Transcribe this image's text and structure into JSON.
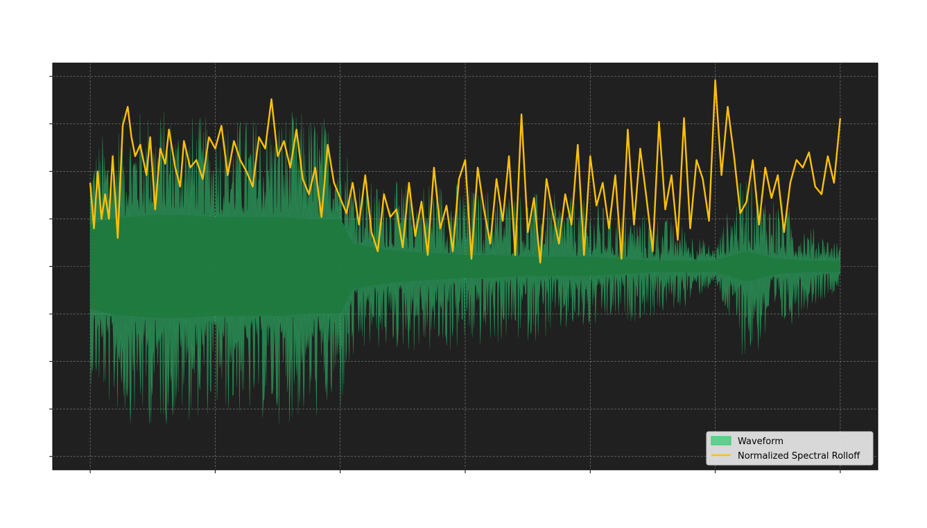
{
  "chart_data": {
    "type": "area",
    "title": "",
    "xlabel": "",
    "ylabel": "",
    "x_ticks_labeled": false,
    "y_ticks_labeled": false,
    "xlim": [
      -0.3,
      6.3
    ],
    "ylim": [
      -1.07,
      1.07
    ],
    "x_tick_positions": [
      0,
      1,
      2,
      3,
      4,
      5,
      6
    ],
    "y_tick_positions": [
      -1.0,
      -0.75,
      -0.5,
      -0.25,
      0.0,
      0.25,
      0.5,
      0.75,
      1.0
    ],
    "grid": true,
    "legend_position": "lower right",
    "background_color": "#202020",
    "series": [
      {
        "name": "Waveform",
        "kind": "filled envelope",
        "color": "#2ecc71",
        "x": [
          0.0,
          0.15,
          0.3,
          0.5,
          0.75,
          1.0,
          1.25,
          1.5,
          1.75,
          2.0,
          2.1,
          2.25,
          2.5,
          2.75,
          3.0,
          3.25,
          3.5,
          3.75,
          4.0,
          4.25,
          4.5,
          4.75,
          5.0,
          5.1,
          5.25,
          5.5,
          5.75,
          6.0
        ],
        "peak_amplitude": [
          0.62,
          0.75,
          0.82,
          0.85,
          0.82,
          0.78,
          0.8,
          0.83,
          0.82,
          0.8,
          0.55,
          0.45,
          0.45,
          0.48,
          0.45,
          0.42,
          0.4,
          0.38,
          0.35,
          0.3,
          0.28,
          0.22,
          0.1,
          0.3,
          0.52,
          0.38,
          0.22,
          0.12
        ],
        "dense_amplitude": [
          0.22,
          0.25,
          0.26,
          0.27,
          0.27,
          0.26,
          0.26,
          0.26,
          0.25,
          0.25,
          0.12,
          0.1,
          0.08,
          0.07,
          0.06,
          0.06,
          0.05,
          0.05,
          0.05,
          0.04,
          0.03,
          0.03,
          0.03,
          0.05,
          0.08,
          0.04,
          0.03,
          0.03
        ]
      },
      {
        "name": "Normalized Spectral Rolloff",
        "kind": "line",
        "color": "#ffc107",
        "x": [
          0.0,
          0.03,
          0.06,
          0.09,
          0.12,
          0.15,
          0.18,
          0.22,
          0.26,
          0.3,
          0.33,
          0.36,
          0.4,
          0.45,
          0.48,
          0.52,
          0.56,
          0.6,
          0.63,
          0.68,
          0.72,
          0.75,
          0.8,
          0.85,
          0.9,
          0.95,
          1.0,
          1.05,
          1.1,
          1.15,
          1.2,
          1.25,
          1.3,
          1.35,
          1.4,
          1.45,
          1.5,
          1.55,
          1.6,
          1.65,
          1.7,
          1.75,
          1.8,
          1.85,
          1.9,
          1.95,
          2.0,
          2.05,
          2.1,
          2.15,
          2.2,
          2.25,
          2.3,
          2.35,
          2.4,
          2.45,
          2.5,
          2.55,
          2.6,
          2.65,
          2.7,
          2.75,
          2.8,
          2.85,
          2.9,
          2.95,
          3.0,
          3.05,
          3.1,
          3.15,
          3.2,
          3.25,
          3.3,
          3.35,
          3.4,
          3.45,
          3.5,
          3.55,
          3.6,
          3.65,
          3.7,
          3.75,
          3.8,
          3.85,
          3.9,
          3.95,
          4.0,
          4.05,
          4.1,
          4.15,
          4.2,
          4.25,
          4.3,
          4.35,
          4.4,
          4.45,
          4.5,
          4.55,
          4.6,
          4.65,
          4.7,
          4.75,
          4.8,
          4.85,
          4.9,
          4.95,
          5.0,
          5.05,
          5.1,
          5.15,
          5.2,
          5.25,
          5.3,
          5.35,
          5.4,
          5.45,
          5.5,
          5.55,
          5.6,
          5.65,
          5.7,
          5.75,
          5.8,
          5.85,
          5.9,
          5.95,
          6.0
        ],
        "y": [
          0.44,
          0.2,
          0.5,
          0.25,
          0.38,
          0.25,
          0.58,
          0.15,
          0.74,
          0.84,
          0.68,
          0.58,
          0.64,
          0.48,
          0.68,
          0.3,
          0.62,
          0.54,
          0.72,
          0.52,
          0.42,
          0.66,
          0.52,
          0.56,
          0.46,
          0.68,
          0.62,
          0.74,
          0.48,
          0.66,
          0.56,
          0.5,
          0.42,
          0.68,
          0.62,
          0.88,
          0.58,
          0.66,
          0.52,
          0.72,
          0.46,
          0.38,
          0.52,
          0.26,
          0.64,
          0.44,
          0.36,
          0.28,
          0.44,
          0.22,
          0.48,
          0.18,
          0.08,
          0.38,
          0.26,
          0.3,
          0.1,
          0.44,
          0.16,
          0.34,
          0.06,
          0.52,
          0.2,
          0.32,
          0.08,
          0.46,
          0.56,
          0.04,
          0.52,
          0.3,
          0.12,
          0.46,
          0.24,
          0.58,
          0.06,
          0.8,
          0.18,
          0.36,
          0.02,
          0.46,
          0.28,
          0.12,
          0.38,
          0.22,
          0.64,
          0.06,
          0.58,
          0.32,
          0.44,
          0.2,
          0.48,
          0.04,
          0.72,
          0.22,
          0.62,
          0.36,
          0.08,
          0.76,
          0.3,
          0.48,
          0.14,
          0.78,
          0.2,
          0.56,
          0.46,
          0.24,
          0.98,
          0.48,
          0.84,
          0.58,
          0.28,
          0.34,
          0.56,
          0.22,
          0.52,
          0.36,
          0.48,
          0.18,
          0.44,
          0.56,
          0.52,
          0.6,
          0.42,
          0.38,
          0.58,
          0.44,
          0.78
        ]
      }
    ]
  }
}
